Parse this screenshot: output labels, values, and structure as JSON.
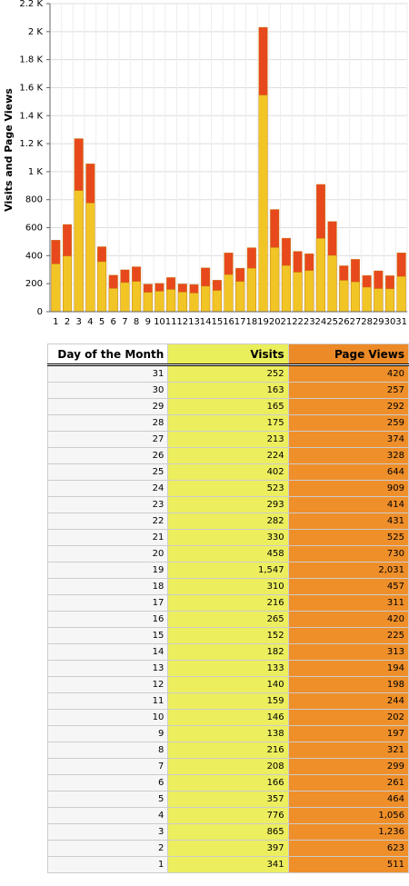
{
  "chart_data": {
    "type": "bar",
    "y_label": "Visits and Page Views",
    "categories": [
      "1",
      "2",
      "3",
      "4",
      "5",
      "6",
      "7",
      "8",
      "9",
      "10",
      "11",
      "12",
      "13",
      "14",
      "15",
      "16",
      "17",
      "18",
      "19",
      "20",
      "21",
      "22",
      "23",
      "24",
      "25",
      "26",
      "27",
      "28",
      "29",
      "30",
      "31"
    ],
    "series": [
      {
        "color": "#e8491c",
        "values": [
          511,
          623,
          1236,
          1056,
          464,
          261,
          299,
          321,
          197,
          202,
          244,
          198,
          194,
          313,
          225,
          420,
          311,
          457,
          2031,
          730,
          525,
          431,
          414,
          909,
          644,
          328,
          374,
          259,
          292,
          257,
          420
        ]
      },
      {
        "color": "#f2c526",
        "values": [
          341,
          397,
          865,
          776,
          357,
          166,
          208,
          216,
          138,
          146,
          159,
          140,
          133,
          182,
          152,
          265,
          216,
          310,
          1547,
          458,
          330,
          282,
          293,
          523,
          402,
          224,
          213,
          175,
          165,
          163,
          252
        ]
      }
    ],
    "ylim": [
      0,
      2200
    ],
    "yticks": [
      0,
      200,
      400,
      600,
      800,
      {
        "value": 1000,
        "label": "1 K"
      },
      {
        "value": 1200,
        "label": "1.2 K"
      },
      {
        "value": 1400,
        "label": "1.4 K"
      },
      {
        "value": 1600,
        "label": "1.6 K"
      },
      {
        "value": 1800,
        "label": "1.8 K"
      },
      {
        "value": 2000,
        "label": "2 K"
      },
      {
        "value": 2200,
        "label": "2.2 K"
      }
    ],
    "grid": true
  },
  "table": {
    "header": [
      "Day of the Month",
      "Visits",
      "Page Views"
    ],
    "rows": [
      [
        "31",
        "252",
        "420"
      ],
      [
        "30",
        "163",
        "257"
      ],
      [
        "29",
        "165",
        "292"
      ],
      [
        "28",
        "175",
        "259"
      ],
      [
        "27",
        "213",
        "374"
      ],
      [
        "26",
        "224",
        "328"
      ],
      [
        "25",
        "402",
        "644"
      ],
      [
        "24",
        "523",
        "909"
      ],
      [
        "23",
        "293",
        "414"
      ],
      [
        "22",
        "282",
        "431"
      ],
      [
        "21",
        "330",
        "525"
      ],
      [
        "20",
        "458",
        "730"
      ],
      [
        "19",
        "1,547",
        "2,031"
      ],
      [
        "18",
        "310",
        "457"
      ],
      [
        "17",
        "216",
        "311"
      ],
      [
        "16",
        "265",
        "420"
      ],
      [
        "15",
        "152",
        "225"
      ],
      [
        "14",
        "182",
        "313"
      ],
      [
        "13",
        "133",
        "194"
      ],
      [
        "12",
        "140",
        "198"
      ],
      [
        "11",
        "159",
        "244"
      ],
      [
        "10",
        "146",
        "202"
      ],
      [
        "9",
        "138",
        "197"
      ],
      [
        "8",
        "216",
        "321"
      ],
      [
        "7",
        "208",
        "299"
      ],
      [
        "6",
        "166",
        "261"
      ],
      [
        "5",
        "357",
        "464"
      ],
      [
        "4",
        "776",
        "1,056"
      ],
      [
        "3",
        "865",
        "1,236"
      ],
      [
        "2",
        "397",
        "623"
      ],
      [
        "1",
        "341",
        "511"
      ]
    ]
  }
}
